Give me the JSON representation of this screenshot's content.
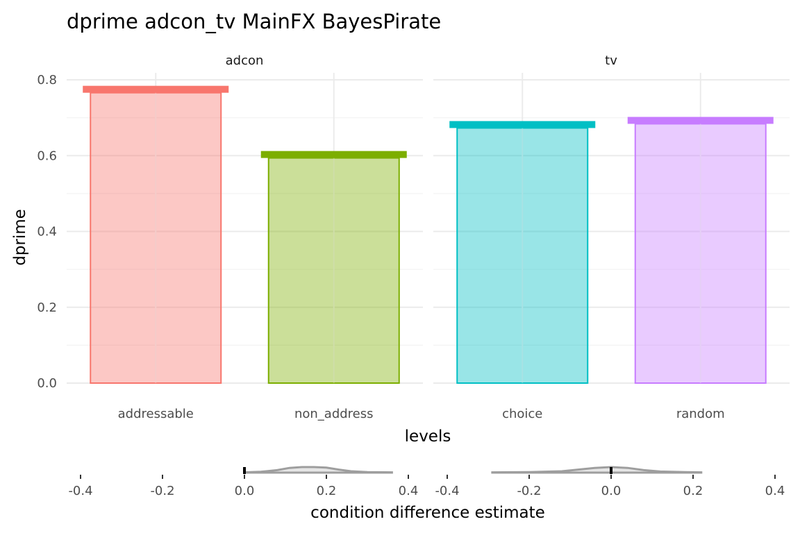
{
  "chart_data": [
    {
      "type": "bar",
      "title": "dprime adcon_tv MainFX BayesPirate",
      "xlabel": "levels",
      "ylabel": "dprime",
      "ylim": [
        0,
        0.8
      ],
      "y_ticks": [
        "0.0",
        "0.2",
        "0.4",
        "0.6",
        "0.8"
      ],
      "grid": true,
      "panels": [
        {
          "name": "adcon",
          "categories": [
            "addressable",
            "non_address"
          ],
          "values": [
            0.775,
            0.603
          ],
          "colors": [
            "#F8766D",
            "#7CAE00"
          ]
        },
        {
          "name": "tv",
          "categories": [
            "choice",
            "random"
          ],
          "values": [
            0.682,
            0.693
          ],
          "colors": [
            "#00BFC4",
            "#C77CFF"
          ]
        }
      ]
    },
    {
      "type": "area",
      "xlabel": "condition difference estimate",
      "x_ticks": [
        "-0.4",
        "-0.2",
        "0.0",
        "0.2",
        "0.4"
      ],
      "xlim": [
        -0.4,
        0.4
      ],
      "grid": false,
      "panels": [
        {
          "name": "adcon",
          "estimate_marker": 0.0,
          "density_x": [
            0.0,
            0.04,
            0.08,
            0.11,
            0.14,
            0.17,
            0.2,
            0.23,
            0.26,
            0.3,
            0.36
          ],
          "density_y": [
            0.05,
            0.15,
            0.45,
            0.85,
            1.0,
            1.0,
            0.9,
            0.55,
            0.25,
            0.1,
            0.05
          ]
        },
        {
          "name": "tv",
          "estimate_marker": 0.0,
          "density_x": [
            -0.29,
            -0.2,
            -0.12,
            -0.08,
            -0.04,
            0.0,
            0.04,
            0.08,
            0.12,
            0.18,
            0.22
          ],
          "density_y": [
            0.05,
            0.1,
            0.25,
            0.55,
            0.85,
            1.0,
            0.85,
            0.45,
            0.2,
            0.1,
            0.05
          ]
        }
      ]
    }
  ]
}
